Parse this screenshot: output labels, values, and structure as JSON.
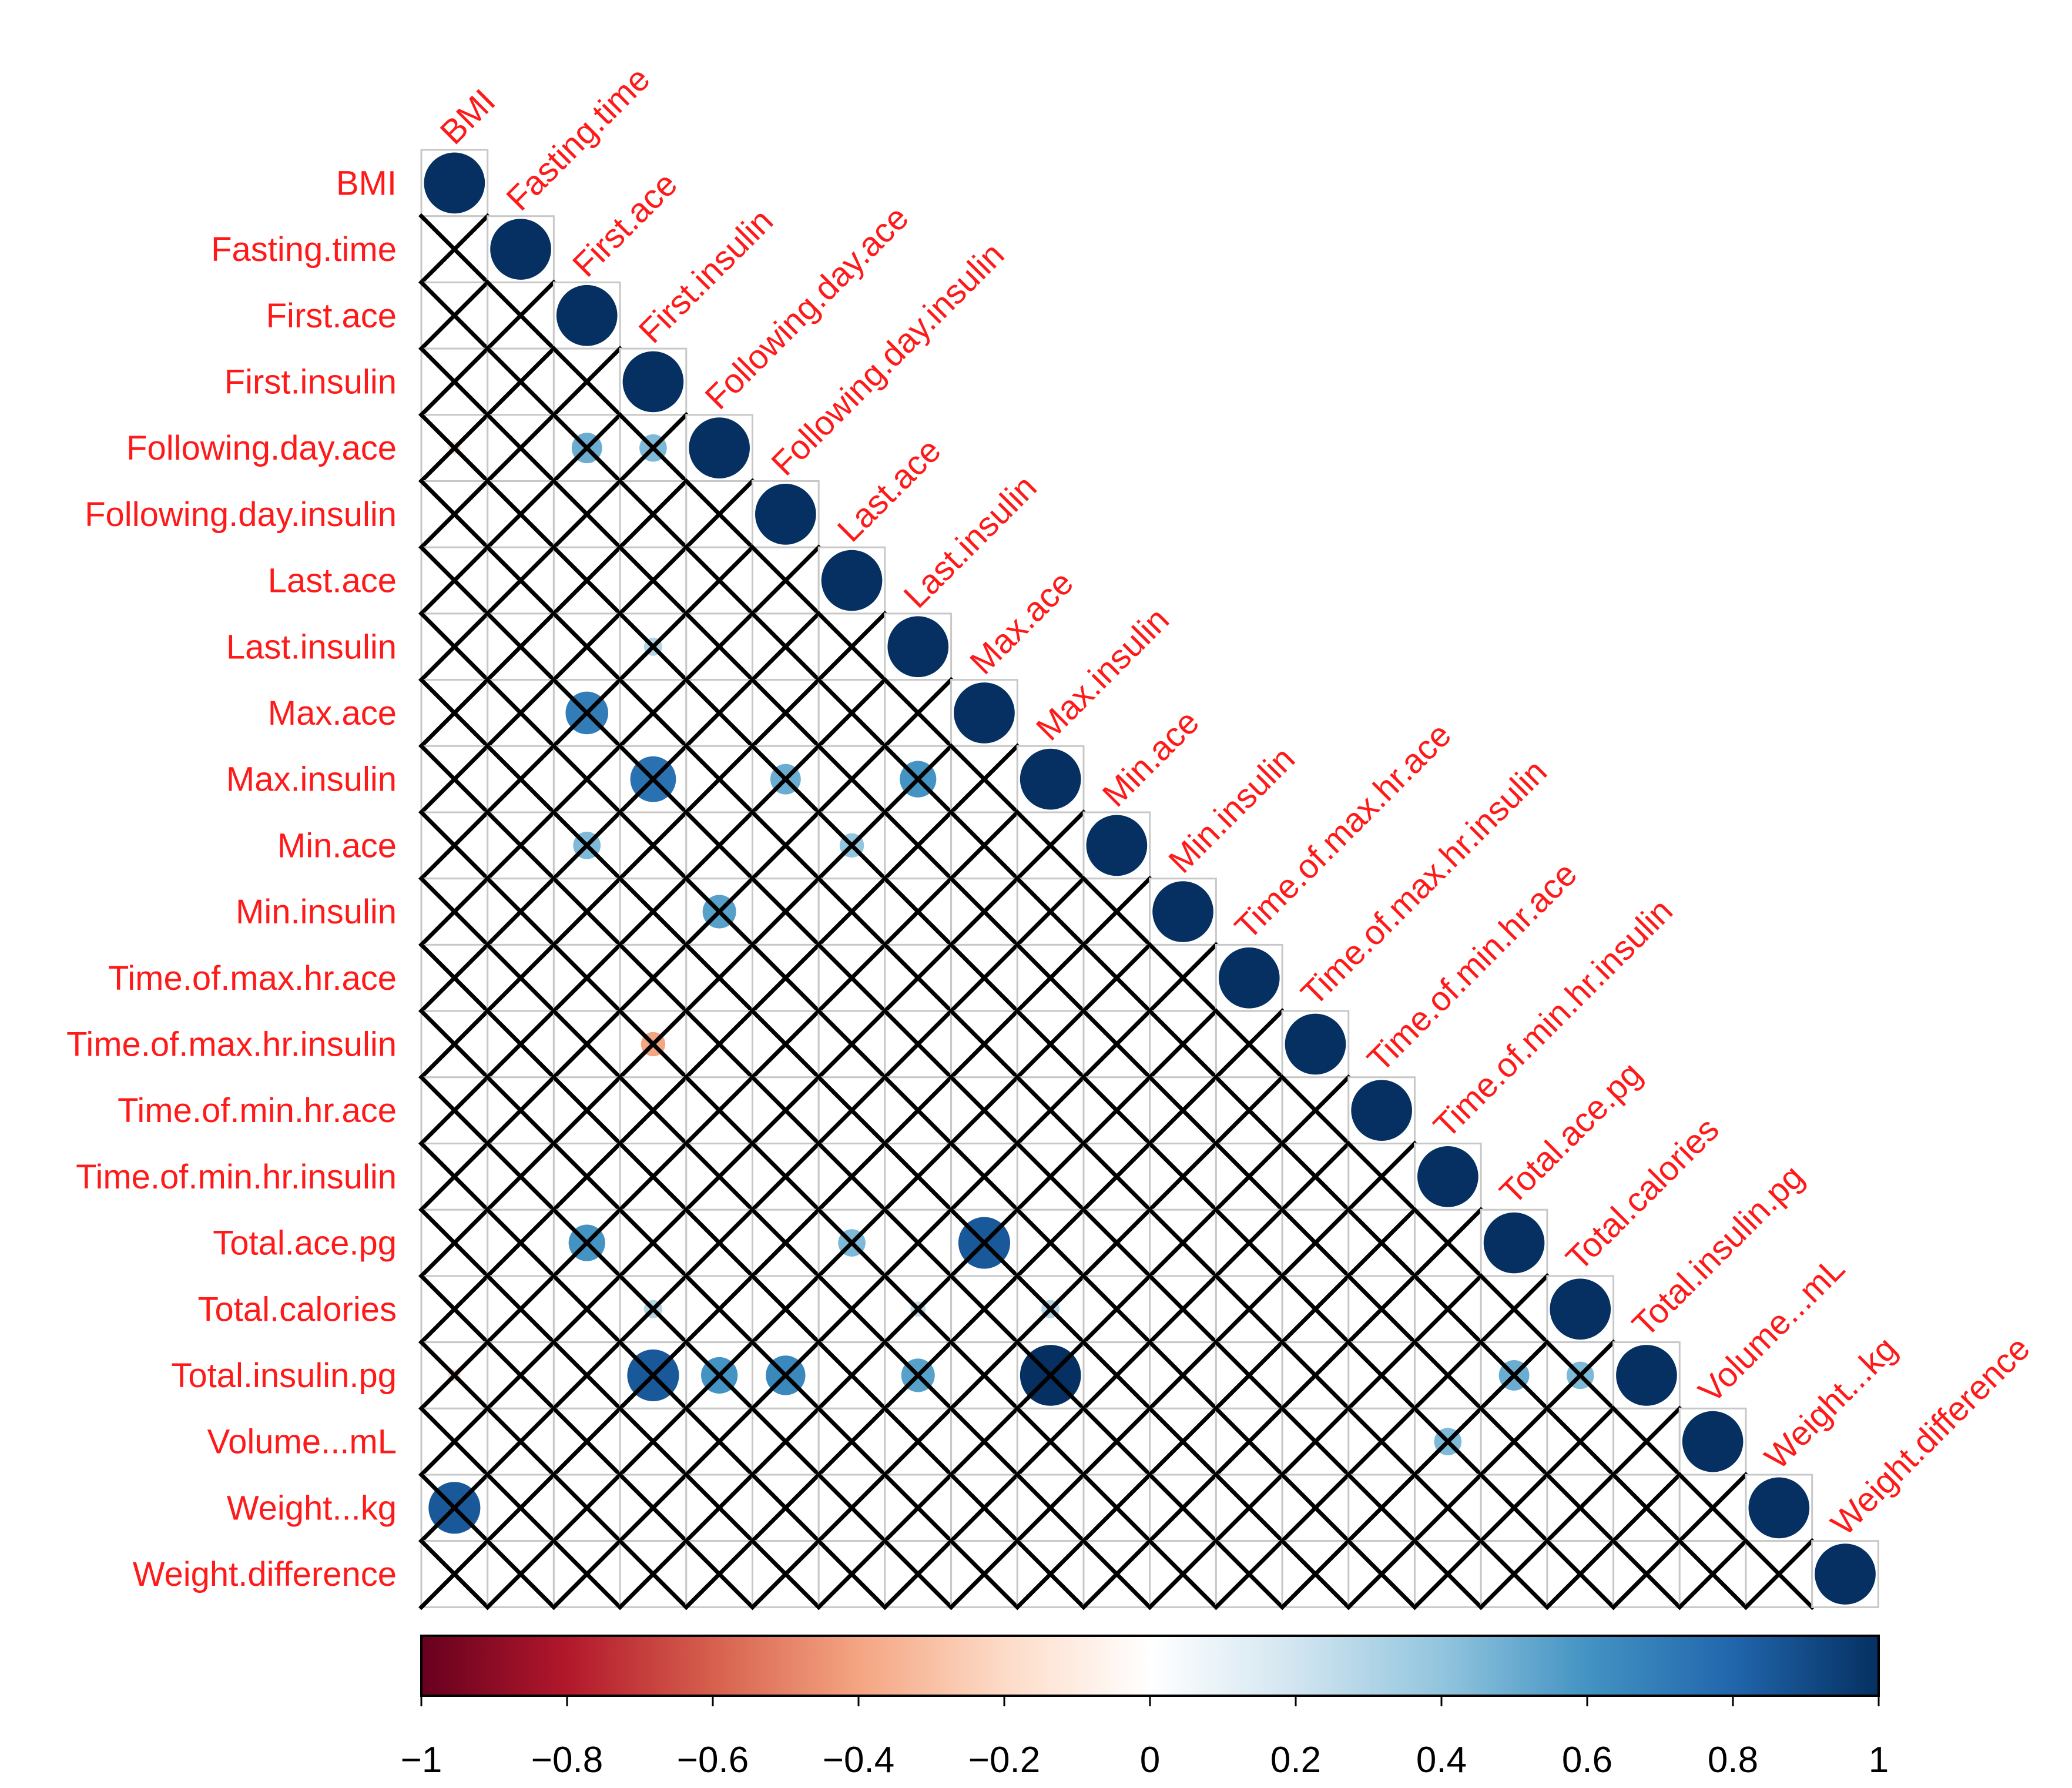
{
  "chart_data": {
    "type": "heatmap",
    "title": "",
    "variables": [
      "BMI",
      "Fasting.time",
      "First.ace",
      "First.insulin",
      "Following.day.ace",
      "Following.day.insulin",
      "Last.ace",
      "Last.insulin",
      "Max.ace",
      "Max.insulin",
      "Min.ace",
      "Min.insulin",
      "Time.of.max.hr.ace",
      "Time.of.max.hr.insulin",
      "Time.of.min.hr.ace",
      "Time.of.min.hr.insulin",
      "Total.ace.pg",
      "Total.calories",
      "Total.insulin.pg",
      "Volume...mL",
      "Weight...kg",
      "Weight.difference"
    ],
    "correlations": [
      [
        1
      ],
      [
        0,
        1
      ],
      [
        0,
        0,
        1
      ],
      [
        -0.12,
        0,
        0.05,
        1
      ],
      [
        -0.2,
        0,
        0.5,
        0.45,
        1
      ],
      [
        -0.05,
        0,
        0,
        0,
        0.1,
        1
      ],
      [
        0,
        0,
        0.08,
        0,
        0.12,
        0.05,
        1
      ],
      [
        -0.08,
        0.12,
        0,
        0.3,
        0,
        0,
        0,
        1
      ],
      [
        0,
        0,
        0.7,
        0,
        0.05,
        0,
        0.12,
        0,
        1
      ],
      [
        -0.12,
        0,
        0,
        0.75,
        0.12,
        0.5,
        -0.12,
        0.6,
        0,
        1
      ],
      [
        0,
        0,
        0.45,
        -0.08,
        0,
        0,
        0.4,
        0,
        0.12,
        -0.05,
        1
      ],
      [
        -0.05,
        0.12,
        0,
        0.05,
        0.55,
        0.12,
        0,
        0,
        0,
        0,
        0.1,
        1
      ],
      [
        0,
        0,
        -0.1,
        -0.15,
        -0.15,
        -0.05,
        0,
        0,
        -0.05,
        0,
        0,
        0,
        1
      ],
      [
        0.04,
        -0.06,
        0,
        -0.4,
        0,
        0,
        0,
        0,
        0,
        -0.05,
        0,
        0,
        0.1,
        1
      ],
      [
        0,
        0.08,
        0,
        0.05,
        0.15,
        0.12,
        -0.1,
        0,
        0.06,
        0.04,
        -0.05,
        0,
        -0.05,
        0,
        1
      ],
      [
        -0.07,
        0,
        0,
        0.06,
        0,
        0.1,
        -0.15,
        -0.12,
        0,
        -0.08,
        -0.05,
        -0.1,
        -0.08,
        0.06,
        0.04,
        1
      ],
      [
        0,
        -0.05,
        0.6,
        -0.08,
        0,
        -0.08,
        0.45,
        0,
        0.85,
        -0.05,
        0.15,
        -0.04,
        -0.08,
        0,
        0.04,
        -0.05,
        1
      ],
      [
        -0.08,
        0,
        0,
        0.3,
        0.06,
        0,
        0,
        0.25,
        -0.06,
        0.3,
        -0.06,
        0,
        -0.06,
        0,
        0,
        0,
        0,
        1
      ],
      [
        -0.2,
        0,
        0,
        0.85,
        0.6,
        0.65,
        -0.12,
        0.55,
        0,
        1,
        -0.08,
        0.08,
        -0.07,
        -0.05,
        0.1,
        -0.05,
        0.5,
        0.45,
        1
      ],
      [
        -0.06,
        -0.06,
        0,
        0,
        0,
        0,
        0,
        0,
        0,
        0,
        -0.1,
        -0.1,
        0,
        0,
        0,
        0.45,
        0,
        0,
        0,
        1
      ],
      [
        0.85,
        0,
        0,
        0,
        0,
        -0.08,
        0,
        0,
        0,
        0.08,
        0,
        0,
        0,
        0,
        -0.12,
        0,
        -0.05,
        0,
        0,
        0,
        1
      ],
      [
        0,
        0,
        0,
        0,
        -0.04,
        0,
        -0.04,
        0,
        0,
        0,
        0,
        0,
        0.06,
        0,
        0,
        0,
        -0.06,
        0,
        0,
        0,
        0,
        1
      ]
    ],
    "insignificant_marked": "x",
    "colorbar": {
      "range": [
        -1,
        1
      ],
      "ticks": [
        "−1",
        "−0.8",
        "−0.6",
        "−0.4",
        "−0.2",
        "0",
        "0.2",
        "0.4",
        "0.6",
        "0.8",
        "1"
      ],
      "colors": [
        "#67001f",
        "#b2182b",
        "#d6604d",
        "#f4a582",
        "#fddbc7",
        "#ffffff",
        "#d1e5f0",
        "#92c5de",
        "#4393c3",
        "#2166ac",
        "#053061"
      ]
    },
    "label_color": "#ff1a1a"
  }
}
